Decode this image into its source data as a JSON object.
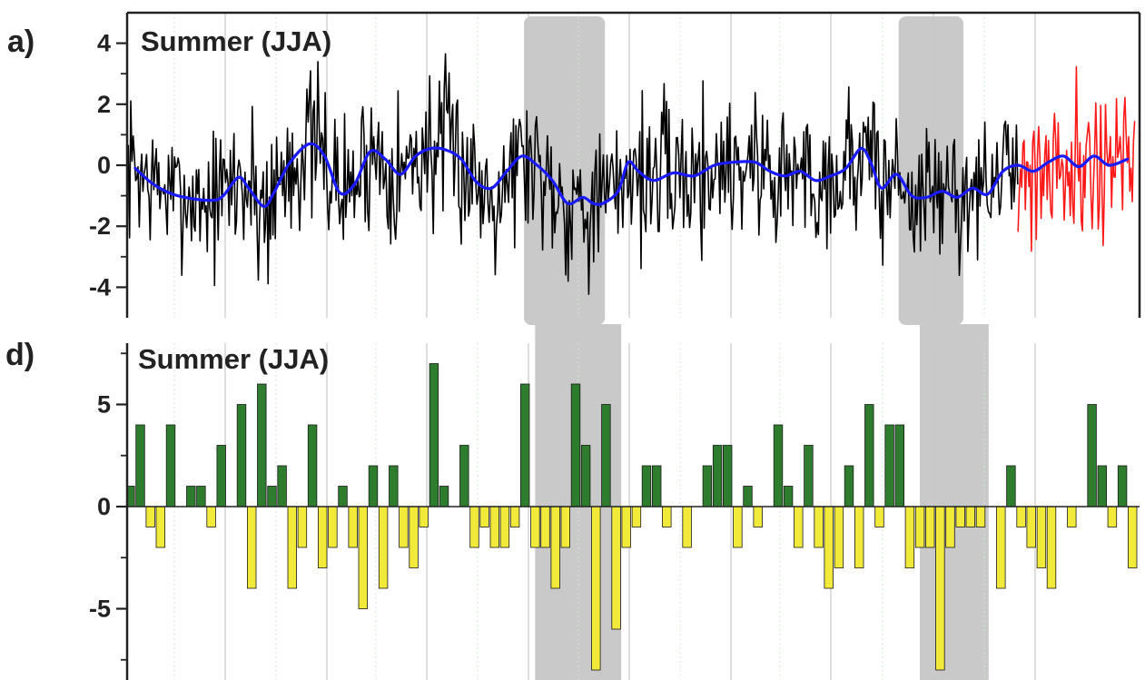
{
  "chart_data": [
    {
      "panel": "a)",
      "type": "line",
      "title": "Summer (JJA)",
      "ylim": [
        -5,
        5
      ],
      "yticks": [
        4,
        2,
        0,
        -2,
        -4
      ],
      "ytick_labels": [
        "4",
        "2",
        "0",
        "-2",
        "-4"
      ],
      "xlim": [
        0,
        100
      ],
      "shaded_x_ranges": [
        [
          39.2,
          47.2
        ],
        [
          76.2,
          82.6
        ]
      ],
      "series": [
        {
          "color": "#000000",
          "role": "annual values",
          "noise_seed": 7,
          "envelope": [
            [
              0,
              1.8
            ],
            [
              6,
              1.6
            ],
            [
              13,
              2.4
            ],
            [
              20,
              1.9
            ],
            [
              30,
              2.1
            ],
            [
              40,
              2.0
            ],
            [
              50,
              2.0
            ],
            [
              60,
              2.1
            ],
            [
              70,
              2.0
            ],
            [
              80,
              1.9
            ],
            [
              87,
              1.5
            ]
          ],
          "x_range": [
            0,
            88
          ]
        },
        {
          "color": "#ff1a1a",
          "role": "recent values",
          "noise_seed": 21,
          "envelope": [
            [
              88,
              2.0
            ],
            [
              100,
              2.1
            ]
          ],
          "x_range": [
            88,
            99.6
          ]
        },
        {
          "color": "#1a1aff",
          "role": "smoothed",
          "x": [
            0.8,
            2.5,
            4.5,
            6.5,
            8.5,
            9.5,
            11,
            12,
            13.5,
            14.5,
            16,
            18,
            19.5,
            21,
            22.5,
            24,
            25.5,
            27,
            28.5,
            30,
            31.5,
            33,
            34.5,
            36,
            37.5,
            39,
            40.5,
            42,
            43.5,
            45,
            46,
            47,
            48.5,
            49.5,
            50.5,
            52,
            54,
            56,
            58,
            60,
            62,
            63.5,
            65,
            66.5,
            68,
            69.5,
            71,
            72.5,
            73.5,
            74.5,
            76,
            77.5,
            79,
            80.5,
            82,
            83.5,
            85,
            86.5,
            88,
            89.5,
            91,
            92.5,
            94,
            95.5,
            97,
            98.8
          ],
          "y": [
            -0.1,
            -0.6,
            -0.95,
            -1.1,
            -1.15,
            -1.0,
            -0.4,
            -0.75,
            -1.35,
            -0.9,
            0.05,
            0.7,
            0.3,
            -0.9,
            -0.6,
            0.45,
            0.2,
            -0.3,
            0.3,
            0.55,
            0.5,
            0.2,
            -0.55,
            -0.75,
            -0.2,
            0.3,
            0.0,
            -0.5,
            -1.25,
            -1.05,
            -1.25,
            -1.25,
            -0.85,
            0.1,
            -0.2,
            -0.5,
            -0.25,
            -0.35,
            0.0,
            0.1,
            0.1,
            -0.2,
            -0.35,
            -0.2,
            -0.5,
            -0.35,
            -0.1,
            0.55,
            0.05,
            -0.75,
            -0.3,
            -1.0,
            -1.05,
            -0.85,
            -1.05,
            -0.75,
            -0.95,
            -0.2,
            0.0,
            -0.2,
            0.1,
            0.3,
            -0.05,
            0.3,
            0.0,
            0.2
          ]
        }
      ]
    },
    {
      "panel": "d)",
      "type": "bar",
      "title": "Summer (JJA)",
      "ylim": [
        -8.2,
        7.8
      ],
      "yticks": [
        5,
        0,
        -5
      ],
      "ytick_labels": [
        "5",
        "0",
        "-5"
      ],
      "xlim": [
        0,
        100
      ],
      "shaded_x_ranges": [
        [
          40.3,
          48.8
        ],
        [
          78.3,
          85.1
        ]
      ],
      "series": [
        {
          "name": "",
          "positive_color": "#2e7d2e",
          "negative_color": "#f2ea3a",
          "x": [
            0.3,
            1.3,
            2.3,
            3.3,
            4.3,
            5.3,
            6.3,
            7.3,
            8.3,
            9.3,
            10.3,
            11.3,
            12.3,
            13.3,
            14.3,
            15.3,
            16.3,
            17.3,
            18.3,
            19.3,
            20.3,
            21.3,
            22.3,
            23.3,
            24.3,
            25.3,
            26.3,
            27.3,
            28.3,
            29.3,
            30.3,
            31.3,
            32.3,
            33.3,
            34.3,
            35.3,
            36.3,
            37.3,
            38.3,
            39.3,
            40.3,
            41.3,
            42.3,
            43.3,
            44.3,
            45.3,
            46.3,
            47.3,
            48.3,
            49.3,
            50.3,
            51.3,
            52.3,
            53.3,
            54.3,
            55.3,
            56.3,
            57.3,
            58.3,
            59.3,
            60.3,
            61.3,
            62.3,
            63.3,
            64.3,
            65.3,
            66.3,
            67.3,
            68.3,
            69.3,
            70.3,
            71.3,
            72.3,
            73.3,
            74.3,
            75.3,
            76.3,
            77.3,
            78.3,
            79.3,
            80.3,
            81.3,
            82.3,
            83.3,
            84.3,
            85.3,
            86.3,
            87.3,
            88.3,
            89.3,
            90.3,
            91.3,
            92.3,
            93.3,
            94.3,
            95.3,
            96.3,
            97.3,
            98.3,
            99.3
          ],
          "values": [
            1,
            4,
            -1,
            -2,
            4,
            0,
            1,
            1,
            -1,
            3,
            0,
            5,
            -4,
            6,
            1,
            2,
            -4,
            -2,
            4,
            -3,
            -2,
            1,
            -2,
            -5,
            2,
            -4,
            2,
            -2,
            -3,
            -1,
            7,
            1,
            0,
            3,
            -2,
            -1,
            -2,
            -2,
            -1,
            6,
            -2,
            -2,
            -4,
            -2,
            6,
            3,
            -8,
            5,
            -6,
            -2,
            -1,
            2,
            2,
            -1,
            0,
            -2,
            0,
            2,
            3,
            3,
            -2,
            1,
            -1,
            0,
            4,
            1,
            -2,
            3,
            -2,
            -4,
            -3,
            2,
            -3,
            5,
            -1,
            4,
            4,
            -3,
            -2,
            -2,
            -8,
            -2,
            -1,
            -1,
            -1,
            0,
            -4,
            2,
            -1,
            -2,
            -3,
            -4,
            0,
            -1,
            0,
            5,
            2,
            -1,
            2,
            -3
          ]
        }
      ]
    }
  ]
}
